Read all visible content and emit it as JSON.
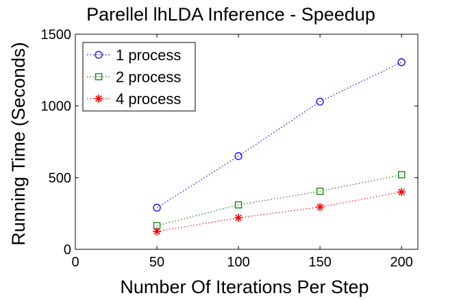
{
  "chart_data": {
    "type": "line",
    "title": "Parellel lhLDA Inference - Speedup",
    "xlabel": "Number Of Iterations Per Step",
    "ylabel": "Running Time (Seconds)",
    "xlim": [
      0,
      210
    ],
    "ylim": [
      0,
      1500
    ],
    "xticks": [
      0,
      50,
      100,
      150,
      200
    ],
    "yticks": [
      0,
      500,
      1000,
      1500
    ],
    "x": [
      50,
      100,
      150,
      200
    ],
    "grid": false,
    "legend_position": "top-left",
    "series": [
      {
        "name": "1 process",
        "values": [
          290,
          650,
          1030,
          1305
        ],
        "color": "#0000ff",
        "marker": "circle",
        "linestyle": "dotted"
      },
      {
        "name": "2 process",
        "values": [
          165,
          310,
          405,
          520
        ],
        "color": "#008000",
        "marker": "square",
        "linestyle": "dotted"
      },
      {
        "name": "4 process",
        "values": [
          125,
          220,
          295,
          400
        ],
        "color": "#ff0000",
        "marker": "star",
        "linestyle": "dotted"
      }
    ]
  }
}
